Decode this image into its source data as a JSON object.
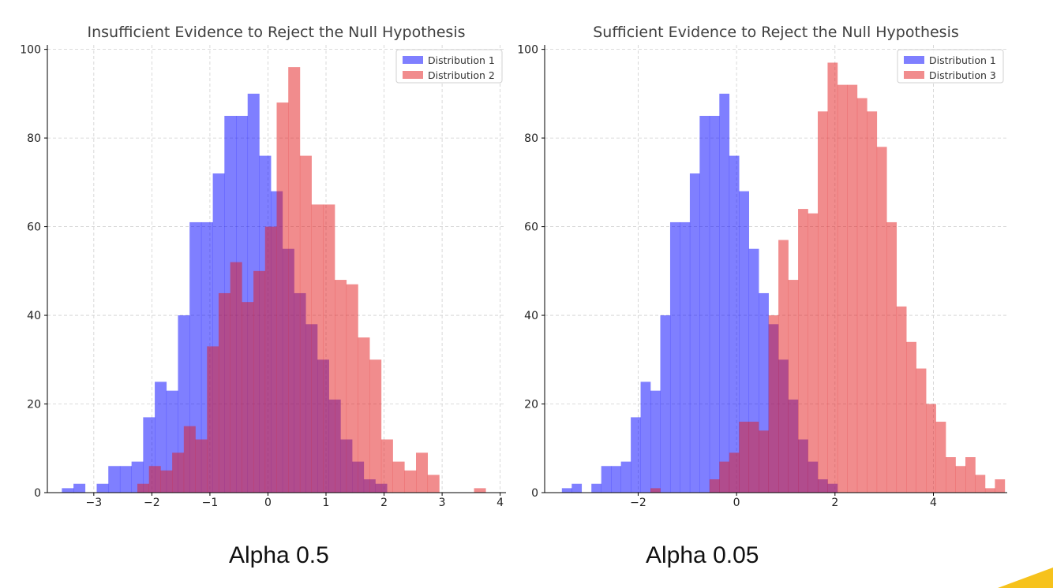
{
  "chart_data": [
    {
      "type": "histogram",
      "title": "Insufficient Evidence to Reject the Null Hypothesis",
      "xlim": [
        -3.8,
        4.1
      ],
      "ylim": [
        0,
        101
      ],
      "xticks": [
        -3,
        -2,
        -1,
        0,
        1,
        2,
        3,
        4
      ],
      "xtick_labels": [
        "−3",
        "−2",
        "−1",
        "0",
        "1",
        "2",
        "3",
        "4"
      ],
      "yticks": [
        0,
        20,
        40,
        60,
        80,
        100
      ],
      "ytick_labels": [
        "0",
        "20",
        "40",
        "60",
        "80",
        "100"
      ],
      "grid": true,
      "legend_position": "top-right",
      "series": [
        {
          "name": "Distribution 1",
          "color": "#0000ff",
          "bin_start": -3.55,
          "bin_width": 0.2,
          "counts": [
            1,
            2,
            0,
            2,
            6,
            6,
            7,
            17,
            25,
            23,
            40,
            61,
            61,
            72,
            85,
            85,
            90,
            76,
            68,
            55,
            45,
            38,
            30,
            21,
            12,
            7,
            3,
            2
          ]
        },
        {
          "name": "Distribution 2",
          "color": "#e41a1c",
          "bin_start": -2.25,
          "bin_width": 0.2,
          "counts": [
            2,
            6,
            5,
            9,
            15,
            12,
            33,
            45,
            52,
            43,
            50,
            60,
            88,
            96,
            76,
            65,
            65,
            48,
            47,
            35,
            30,
            12,
            7,
            5,
            9,
            4,
            0,
            0,
            0,
            1
          ]
        }
      ]
    },
    {
      "type": "histogram",
      "title": "Sufficient Evidence to Reject the Null Hypothesis",
      "xlim": [
        -3.9,
        5.5
      ],
      "ylim": [
        0,
        101
      ],
      "xticks": [
        -2,
        0,
        2,
        4
      ],
      "xtick_labels": [
        "−2",
        "0",
        "2",
        "4"
      ],
      "yticks": [
        0,
        20,
        40,
        60,
        80,
        100
      ],
      "ytick_labels": [
        "0",
        "20",
        "40",
        "60",
        "80",
        "100"
      ],
      "grid": true,
      "legend_position": "top-right",
      "series": [
        {
          "name": "Distribution 1",
          "color": "#0000ff",
          "bin_start": -3.55,
          "bin_width": 0.2,
          "counts": [
            1,
            2,
            0,
            2,
            6,
            6,
            7,
            17,
            25,
            23,
            40,
            61,
            61,
            72,
            85,
            85,
            90,
            76,
            68,
            55,
            45,
            38,
            30,
            21,
            12,
            7,
            3,
            2
          ]
        },
        {
          "name": "Distribution 3",
          "color": "#e41a1c",
          "bin_start": -1.75,
          "bin_width": 0.2,
          "counts": [
            1,
            0,
            0,
            0,
            0,
            0,
            3,
            7,
            9,
            16,
            16,
            14,
            40,
            57,
            48,
            64,
            63,
            86,
            97,
            92,
            92,
            89,
            86,
            78,
            61,
            42,
            34,
            28,
            20,
            16,
            8,
            6,
            8,
            4,
            1,
            3
          ]
        }
      ]
    }
  ],
  "captions": {
    "left": "Alpha 0.5",
    "right": "Alpha 0.05"
  }
}
